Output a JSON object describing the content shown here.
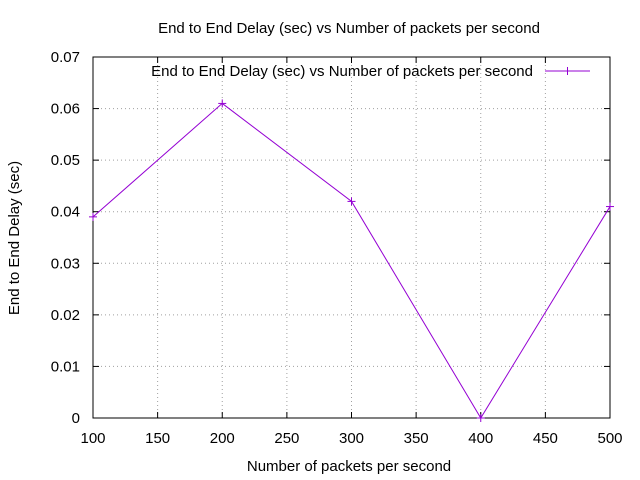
{
  "chart_data": {
    "type": "line",
    "title": "End to End Delay (sec) vs Number of packets per second",
    "xlabel": "Number of packets per second",
    "ylabel": "End to End Delay (sec)",
    "xlim": [
      100,
      500
    ],
    "ylim": [
      0,
      0.07
    ],
    "xticks": [
      100,
      150,
      200,
      250,
      300,
      350,
      400,
      450,
      500
    ],
    "yticks": [
      0,
      0.01,
      0.02,
      0.03,
      0.04,
      0.05,
      0.06,
      0.07
    ],
    "ytick_labels": [
      "0",
      "0.01",
      "0.02",
      "0.03",
      "0.04",
      "0.05",
      "0.06",
      "0.07"
    ],
    "grid": true,
    "legend_position": "top-right",
    "series": [
      {
        "name": "End to End Delay (sec) vs Number of packets per second",
        "color": "#9400d3",
        "marker": "plus",
        "x": [
          100,
          200,
          300,
          400,
          500
        ],
        "y": [
          0.039,
          0.061,
          0.042,
          0.0,
          0.041
        ]
      }
    ]
  }
}
